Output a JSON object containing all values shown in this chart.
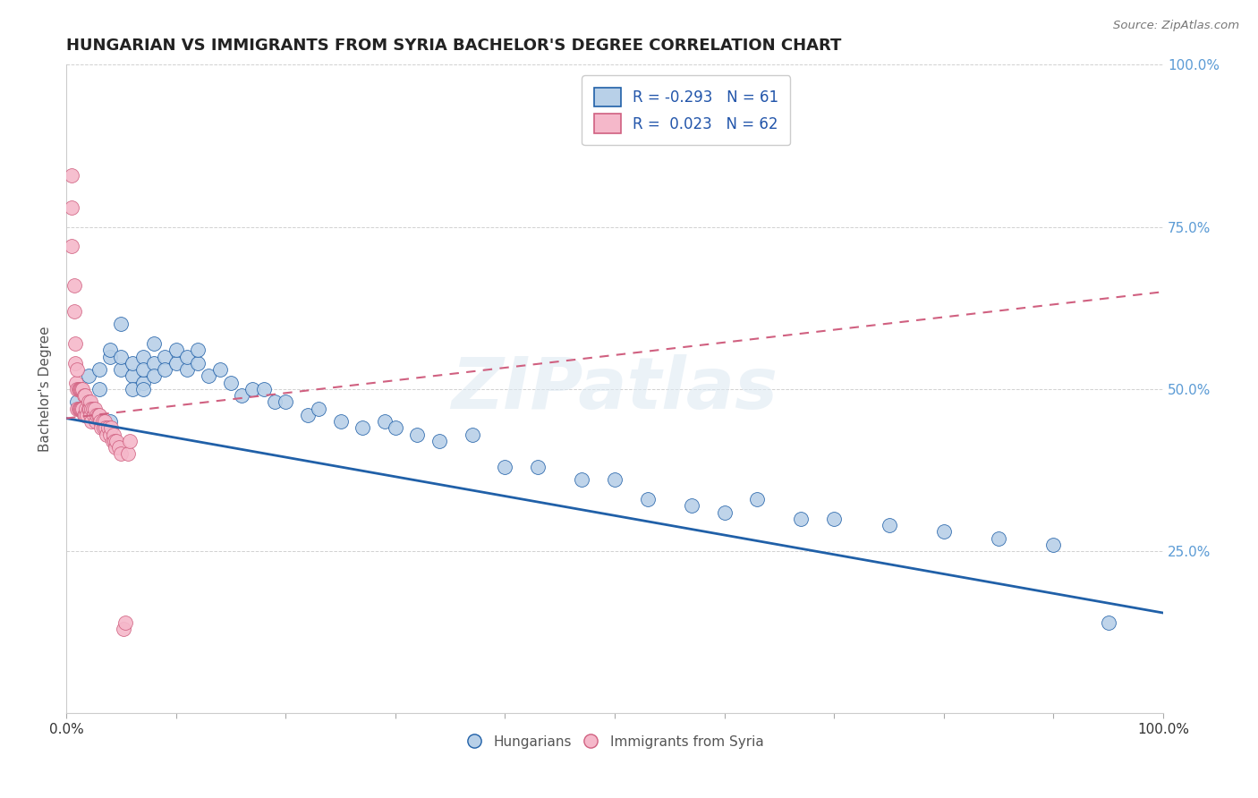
{
  "title": "HUNGARIAN VS IMMIGRANTS FROM SYRIA BACHELOR'S DEGREE CORRELATION CHART",
  "source": "Source: ZipAtlas.com",
  "ylabel": "Bachelor's Degree",
  "watermark": "ZIPatlas",
  "legend_r_hungarian": "-0.293",
  "legend_n_hungarian": "61",
  "legend_r_syria": "0.023",
  "legend_n_syria": "62",
  "hungarian_color": "#b8d0e8",
  "syria_color": "#f5b8ca",
  "hungarian_line_color": "#2060a8",
  "syria_line_color": "#d06080",
  "background_color": "#ffffff",
  "grid_color": "#cccccc",
  "xlim": [
    0.0,
    1.0
  ],
  "ylim": [
    0.0,
    1.0
  ],
  "yticks": [
    0.0,
    0.25,
    0.5,
    0.75,
    1.0
  ],
  "ytick_labels_right": [
    "",
    "25.0%",
    "50.0%",
    "75.0%",
    "100.0%"
  ],
  "hungarian_x": [
    0.01,
    0.02,
    0.02,
    0.03,
    0.03,
    0.04,
    0.04,
    0.04,
    0.05,
    0.05,
    0.05,
    0.06,
    0.06,
    0.06,
    0.07,
    0.07,
    0.07,
    0.07,
    0.08,
    0.08,
    0.08,
    0.09,
    0.09,
    0.1,
    0.1,
    0.11,
    0.11,
    0.12,
    0.12,
    0.13,
    0.14,
    0.15,
    0.16,
    0.17,
    0.18,
    0.19,
    0.2,
    0.22,
    0.23,
    0.25,
    0.27,
    0.29,
    0.3,
    0.32,
    0.34,
    0.37,
    0.4,
    0.43,
    0.47,
    0.5,
    0.53,
    0.57,
    0.6,
    0.63,
    0.67,
    0.7,
    0.75,
    0.8,
    0.85,
    0.9,
    0.95
  ],
  "hungarian_y": [
    0.48,
    0.52,
    0.47,
    0.53,
    0.5,
    0.55,
    0.56,
    0.45,
    0.53,
    0.55,
    0.6,
    0.52,
    0.54,
    0.5,
    0.51,
    0.55,
    0.53,
    0.5,
    0.54,
    0.52,
    0.57,
    0.55,
    0.53,
    0.54,
    0.56,
    0.53,
    0.55,
    0.54,
    0.56,
    0.52,
    0.53,
    0.51,
    0.49,
    0.5,
    0.5,
    0.48,
    0.48,
    0.46,
    0.47,
    0.45,
    0.44,
    0.45,
    0.44,
    0.43,
    0.42,
    0.43,
    0.38,
    0.38,
    0.36,
    0.36,
    0.33,
    0.32,
    0.31,
    0.33,
    0.3,
    0.3,
    0.29,
    0.28,
    0.27,
    0.26,
    0.14
  ],
  "syria_x": [
    0.005,
    0.005,
    0.005,
    0.007,
    0.007,
    0.008,
    0.008,
    0.009,
    0.01,
    0.01,
    0.01,
    0.011,
    0.011,
    0.012,
    0.012,
    0.013,
    0.013,
    0.014,
    0.014,
    0.015,
    0.015,
    0.016,
    0.016,
    0.017,
    0.017,
    0.018,
    0.019,
    0.02,
    0.02,
    0.021,
    0.022,
    0.022,
    0.023,
    0.023,
    0.024,
    0.025,
    0.026,
    0.027,
    0.028,
    0.029,
    0.03,
    0.031,
    0.032,
    0.033,
    0.034,
    0.035,
    0.036,
    0.037,
    0.038,
    0.04,
    0.041,
    0.042,
    0.043,
    0.044,
    0.045,
    0.046,
    0.048,
    0.05,
    0.052,
    0.054,
    0.056,
    0.058
  ],
  "syria_y": [
    0.83,
    0.78,
    0.72,
    0.66,
    0.62,
    0.57,
    0.54,
    0.51,
    0.53,
    0.5,
    0.47,
    0.5,
    0.47,
    0.5,
    0.47,
    0.5,
    0.47,
    0.5,
    0.47,
    0.5,
    0.47,
    0.49,
    0.46,
    0.49,
    0.46,
    0.47,
    0.46,
    0.48,
    0.47,
    0.47,
    0.48,
    0.46,
    0.47,
    0.45,
    0.47,
    0.46,
    0.47,
    0.45,
    0.46,
    0.46,
    0.46,
    0.45,
    0.44,
    0.45,
    0.44,
    0.45,
    0.44,
    0.43,
    0.44,
    0.43,
    0.44,
    0.42,
    0.43,
    0.42,
    0.41,
    0.42,
    0.41,
    0.4,
    0.13,
    0.14,
    0.4,
    0.42
  ],
  "hun_trend_x0": 0.0,
  "hun_trend_y0": 0.455,
  "hun_trend_x1": 1.0,
  "hun_trend_y1": 0.155,
  "syr_trend_x0": 0.0,
  "syr_trend_y0": 0.455,
  "syr_trend_x1": 1.0,
  "syr_trend_y1": 0.65
}
